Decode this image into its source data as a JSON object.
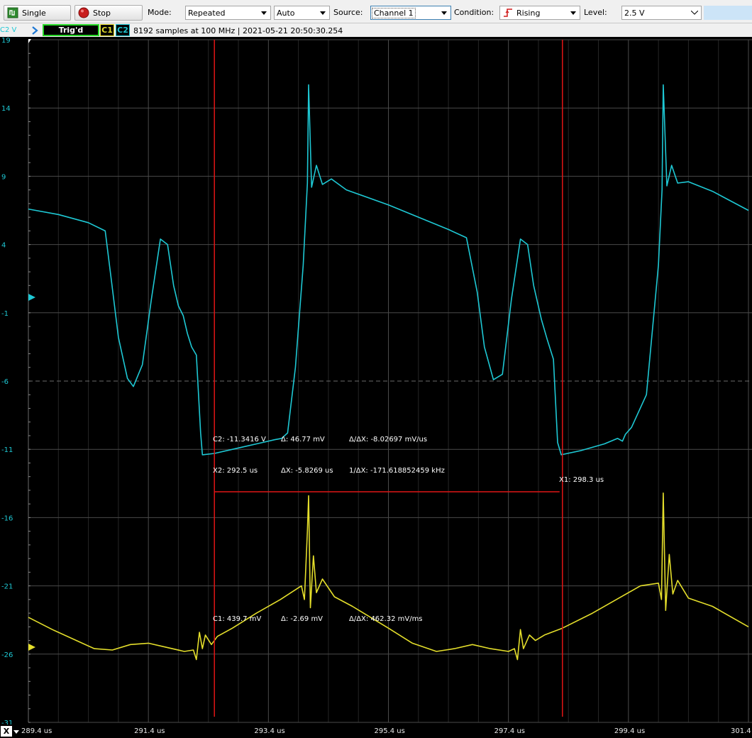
{
  "toolbar": {
    "single_label": "Single",
    "stop_label": "Stop",
    "mode_label": "Mode:",
    "mode_value": "Repeated",
    "auto_value": "Auto",
    "source_label": "Source:",
    "source_value": "Channel 1",
    "condition_label": "Condition:",
    "condition_value": "Rising",
    "level_label": "Level:",
    "level_value": "2.5 V"
  },
  "status": {
    "axis_unit": "C2 V",
    "trigger_state": "Trig'd",
    "c1_label": "C1",
    "c2_label": "C2",
    "acquisition_info": "8192 samples at 100 MHz | 2021-05-21 20:50:30.254"
  },
  "colors": {
    "c1": "#e4de2b",
    "c2": "#1ec8d4",
    "cursor": "#e01515",
    "grid": "#4a4a4a",
    "background": "#000000"
  },
  "y_axis_ticks": [
    "19",
    "14",
    "9",
    "4",
    "-1",
    "-6",
    "-11",
    "-16",
    "-21",
    "-26",
    "-31"
  ],
  "x_axis_ticks": [
    "289.4 us",
    "291.4 us",
    "293.4 us",
    "295.4 us",
    "297.4 us",
    "299.4 us",
    "301.4"
  ],
  "measurements": {
    "c2_value": "C2: -11.3416 V",
    "c2_delta": "Δ: 46.77 mV",
    "c2_rate": "Δ/ΔX: -8.02697 mV/us",
    "x2": "X2: 292.5 us",
    "dx": "ΔX: -5.8269 us",
    "inv_dx": "1/ΔX: -171.618852459 kHz",
    "x1": "X1: 298.3 us",
    "c1_value": "C1: 439.7 mV",
    "c1_delta": "Δ: -2.69 mV",
    "c1_rate": "Δ/ΔX: 462.32 mV/ms"
  },
  "chart_data": {
    "type": "line",
    "xlabel": "",
    "ylabel": "C2 V",
    "xlim": [
      289.4,
      301.4
    ],
    "ylim": [
      -31,
      19
    ],
    "x_ticks": [
      289.4,
      291.4,
      293.4,
      295.4,
      297.4,
      299.4,
      301.4
    ],
    "y_ticks": [
      19,
      14,
      9,
      4,
      -1,
      -6,
      -11,
      -16,
      -21,
      -26,
      -31
    ],
    "grid": true,
    "cursors": {
      "x1": 298.3,
      "x2": 292.5
    },
    "series": [
      {
        "name": "C2",
        "color": "#1ec8d4",
        "points": [
          [
            289.4,
            6.6
          ],
          [
            289.9,
            6.2
          ],
          [
            290.4,
            5.6
          ],
          [
            290.68,
            5.0
          ],
          [
            290.78,
            1.5
          ],
          [
            290.9,
            -2.8
          ],
          [
            291.05,
            -5.8
          ],
          [
            291.15,
            -6.4
          ],
          [
            291.3,
            -4.8
          ],
          [
            291.45,
            0.0
          ],
          [
            291.6,
            4.4
          ],
          [
            291.72,
            4.0
          ],
          [
            291.82,
            1.0
          ],
          [
            291.9,
            -0.5
          ],
          [
            291.98,
            -1.2
          ],
          [
            292.05,
            -2.5
          ],
          [
            292.12,
            -3.5
          ],
          [
            292.2,
            -4.1
          ],
          [
            292.27,
            -9.8
          ],
          [
            292.3,
            -11.4
          ],
          [
            292.5,
            -11.3
          ],
          [
            292.9,
            -10.9
          ],
          [
            293.3,
            -10.5
          ],
          [
            293.5,
            -10.3
          ],
          [
            293.62,
            -10.2
          ],
          [
            293.72,
            -9.8
          ],
          [
            293.85,
            -5.0
          ],
          [
            293.98,
            2.5
          ],
          [
            294.05,
            8.5
          ],
          [
            294.07,
            15.7
          ],
          [
            294.12,
            8.2
          ],
          [
            294.2,
            9.8
          ],
          [
            294.3,
            8.4
          ],
          [
            294.45,
            8.8
          ],
          [
            294.7,
            8.0
          ],
          [
            295.4,
            6.9
          ],
          [
            296.4,
            5.1
          ],
          [
            296.7,
            4.5
          ],
          [
            296.88,
            0.5
          ],
          [
            297.0,
            -3.5
          ],
          [
            297.15,
            -5.9
          ],
          [
            297.3,
            -5.5
          ],
          [
            297.45,
            0.0
          ],
          [
            297.6,
            4.4
          ],
          [
            297.72,
            4.0
          ],
          [
            297.82,
            1.0
          ],
          [
            297.95,
            -1.5
          ],
          [
            298.05,
            -3.0
          ],
          [
            298.15,
            -4.4
          ],
          [
            298.22,
            -10.5
          ],
          [
            298.28,
            -11.4
          ],
          [
            298.6,
            -11.1
          ],
          [
            299.0,
            -10.6
          ],
          [
            299.22,
            -10.2
          ],
          [
            299.3,
            -10.4
          ],
          [
            299.35,
            -9.9
          ],
          [
            299.45,
            -9.4
          ],
          [
            299.7,
            -7.0
          ],
          [
            299.9,
            2.5
          ],
          [
            299.96,
            8.0
          ],
          [
            299.98,
            15.7
          ],
          [
            300.04,
            8.3
          ],
          [
            300.12,
            9.8
          ],
          [
            300.22,
            8.5
          ],
          [
            300.4,
            8.6
          ],
          [
            300.8,
            7.9
          ],
          [
            301.4,
            6.5
          ]
        ]
      },
      {
        "name": "C1",
        "color": "#e4de2b",
        "points": [
          [
            289.4,
            -23.3
          ],
          [
            289.8,
            -24.2
          ],
          [
            290.2,
            -25.0
          ],
          [
            290.5,
            -25.6
          ],
          [
            290.8,
            -25.7
          ],
          [
            291.1,
            -25.3
          ],
          [
            291.4,
            -25.2
          ],
          [
            291.7,
            -25.5
          ],
          [
            292.0,
            -25.8
          ],
          [
            292.15,
            -25.7
          ],
          [
            292.2,
            -26.4
          ],
          [
            292.25,
            -24.4
          ],
          [
            292.3,
            -25.6
          ],
          [
            292.35,
            -24.6
          ],
          [
            292.45,
            -25.3
          ],
          [
            292.55,
            -24.7
          ],
          [
            292.8,
            -24.1
          ],
          [
            293.2,
            -23.0
          ],
          [
            293.6,
            -22.0
          ],
          [
            293.95,
            -21.0
          ],
          [
            294.0,
            -22.0
          ],
          [
            294.05,
            -17.0
          ],
          [
            294.07,
            -14.4
          ],
          [
            294.1,
            -22.6
          ],
          [
            294.15,
            -18.8
          ],
          [
            294.2,
            -21.5
          ],
          [
            294.3,
            -20.5
          ],
          [
            294.5,
            -21.8
          ],
          [
            294.8,
            -22.5
          ],
          [
            295.4,
            -24.1
          ],
          [
            295.8,
            -25.2
          ],
          [
            296.2,
            -25.8
          ],
          [
            296.5,
            -25.6
          ],
          [
            296.8,
            -25.3
          ],
          [
            297.1,
            -25.6
          ],
          [
            297.4,
            -25.8
          ],
          [
            297.5,
            -25.6
          ],
          [
            297.55,
            -26.4
          ],
          [
            297.6,
            -24.2
          ],
          [
            297.65,
            -25.6
          ],
          [
            297.75,
            -24.6
          ],
          [
            297.85,
            -25.0
          ],
          [
            298.0,
            -24.6
          ],
          [
            298.3,
            -24.1
          ],
          [
            298.8,
            -23.0
          ],
          [
            299.2,
            -22.0
          ],
          [
            299.6,
            -21.0
          ],
          [
            299.9,
            -20.8
          ],
          [
            299.95,
            -22.0
          ],
          [
            299.98,
            -14.2
          ],
          [
            300.02,
            -22.8
          ],
          [
            300.08,
            -18.7
          ],
          [
            300.14,
            -21.6
          ],
          [
            300.22,
            -20.6
          ],
          [
            300.4,
            -21.9
          ],
          [
            300.8,
            -22.5
          ],
          [
            301.4,
            -24.0
          ]
        ]
      }
    ]
  }
}
